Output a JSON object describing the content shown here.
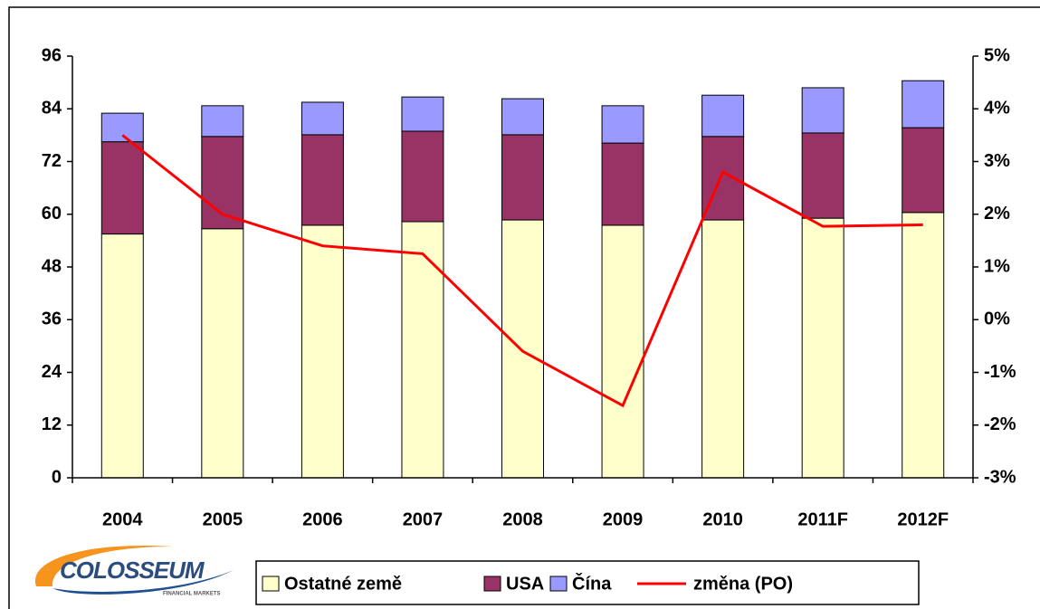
{
  "chart_data": {
    "type": "bar",
    "stacked": true,
    "categories": [
      "2004",
      "2005",
      "2006",
      "2007",
      "2008",
      "2009",
      "2010",
      "2011F",
      "2012F"
    ],
    "series": [
      {
        "name": "Ostatné země",
        "color": "#ffffcc",
        "values": [
          55.5,
          56.7,
          57.5,
          58.3,
          58.7,
          57.5,
          58.7,
          59.1,
          60.4
        ]
      },
      {
        "name": "USA",
        "color": "#993366",
        "values": [
          21,
          21,
          20.6,
          20.6,
          19.4,
          18.7,
          19,
          19.4,
          19.3
        ]
      },
      {
        "name": "Čína",
        "color": "#9999ff",
        "values": [
          6.5,
          7,
          7.4,
          7.8,
          8.2,
          8.5,
          9.4,
          10.3,
          10.7
        ]
      },
      {
        "name": "změna (PO)",
        "color": "#ff0000",
        "type": "line",
        "axis": "y2",
        "values": [
          3.5,
          2.0,
          1.4,
          1.25,
          -0.6,
          -1.63,
          2.8,
          1.77,
          1.8
        ]
      }
    ],
    "ylim": [
      0,
      96
    ],
    "yticks": [
      0,
      12,
      24,
      36,
      48,
      60,
      72,
      84,
      96
    ],
    "y2lim": [
      -3,
      5
    ],
    "y2ticks": [
      {
        "value": -3,
        "label": "-3%"
      },
      {
        "value": -2,
        "label": "-2%"
      },
      {
        "value": -1,
        "label": "-1%"
      },
      {
        "value": 0,
        "label": "0%"
      },
      {
        "value": 1,
        "label": "1%"
      },
      {
        "value": 2,
        "label": "2%"
      },
      {
        "value": 3,
        "label": "3%"
      },
      {
        "value": 4,
        "label": "4%"
      },
      {
        "value": 5,
        "label": "5%"
      }
    ],
    "legend": "bottom"
  },
  "logo": {
    "name": "COLOSSEUM",
    "tagline": "FINANCIAL MARKETS"
  }
}
